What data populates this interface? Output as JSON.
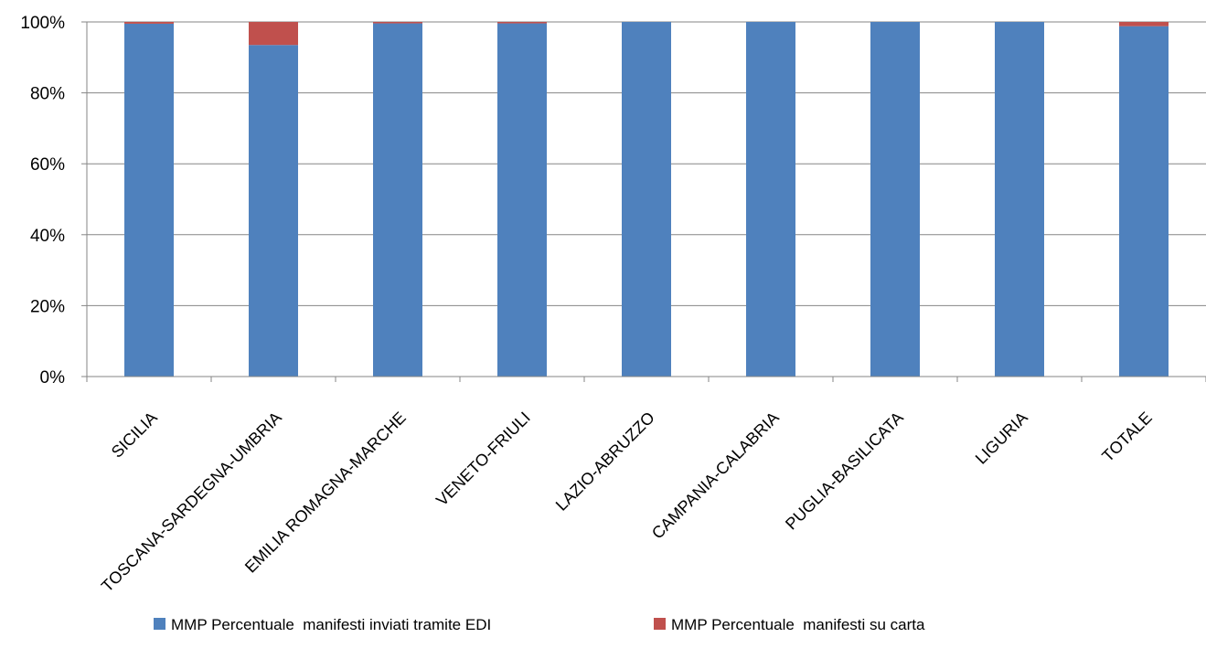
{
  "chart_data": {
    "type": "bar",
    "stacked": true,
    "percent_stacked": true,
    "categories": [
      "SICILIA",
      "TOSCANA-SARDEGNA-UMBRIA",
      "EMILIA ROMAGNA-MARCHE",
      "VENETO-FRIULI",
      "LAZIO-ABRUZZO",
      "CAMPANIA-CALABRIA",
      "PUGLIA-BASILICATA",
      "LIGURIA",
      "TOTALE"
    ],
    "series": [
      {
        "name": "MMP Percentuale  manifesti inviati tramite EDI",
        "color": "#4F81BD",
        "values": [
          99.5,
          93.5,
          99.6,
          99.6,
          100,
          100,
          100,
          100,
          98.8
        ]
      },
      {
        "name": "MMP Percentuale  manifesti su carta",
        "color": "#C0504D",
        "values": [
          0.5,
          6.5,
          0.4,
          0.4,
          0,
          0,
          0,
          0,
          1.2
        ]
      }
    ],
    "yticks": [
      "0%",
      "20%",
      "40%",
      "60%",
      "80%",
      "100%"
    ],
    "ylim": [
      0,
      100
    ],
    "grid": true,
    "legend_position": "bottom",
    "title": "",
    "xlabel": "",
    "ylabel": ""
  }
}
